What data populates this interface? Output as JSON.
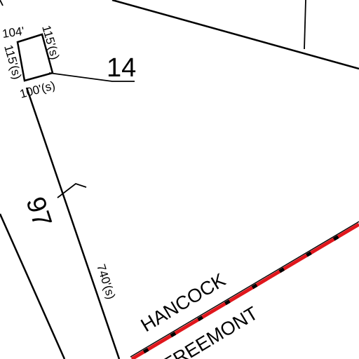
{
  "map": {
    "lot_labels": {
      "lot_14": "14",
      "lot_97": "97"
    },
    "dimensions": {
      "top": "104'",
      "right": "115'(s)",
      "left": "115'(s)",
      "bottom": "100'(s)",
      "frontage": "740'(s)"
    },
    "streets": {
      "hancock": "HANCOCK",
      "freemont": "FREEMONT"
    },
    "colors": {
      "lines": "#000000",
      "road_highlight": "#e0161c",
      "road_dash": "#000000",
      "background": "#ffffff"
    }
  }
}
